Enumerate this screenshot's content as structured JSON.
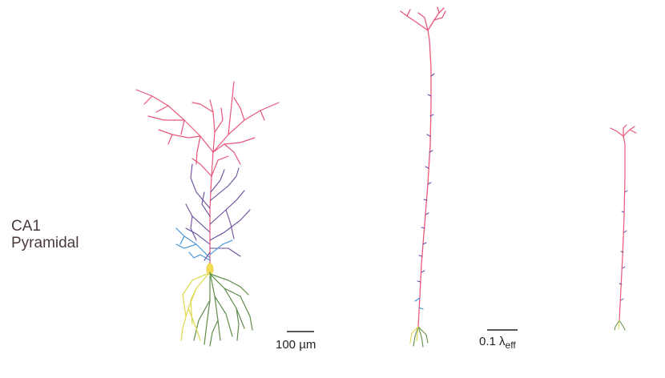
{
  "figure": {
    "cell_label_line1": "CA1",
    "cell_label_line2": "Pyramidal",
    "scale_anatomical": "100 µm",
    "scale_electrotonic_value": "0.1",
    "scale_electrotonic_symbol": "λ",
    "scale_electrotonic_subscript": "eff"
  },
  "colors": {
    "apical_distal": "#e8577a",
    "apical_oblique": "#6a4c9c",
    "apical_proximal": "#3d8fd6",
    "soma": "#f2df55",
    "basal_green": "#5e8c4a",
    "basal_yellow": "#dcd84a",
    "scale_bar": "#222222"
  }
}
